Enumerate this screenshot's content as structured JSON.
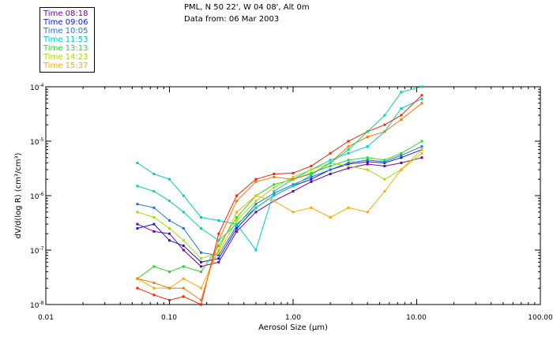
{
  "chart_data": {
    "type": "line",
    "title_lines": [
      "PML, N 50 22', W 04 08', Alt 0m",
      "Data from: 06 Mar 2003"
    ],
    "xlabel": "Aerosol Size (µm)",
    "ylabel": "dV/d(log R) (cm³/cm³)",
    "x_scale": "log",
    "y_scale": "log",
    "xlim": [
      0.01,
      100
    ],
    "ylim": [
      1e-08,
      0.0001
    ],
    "x_tick_labels": [
      "0.01",
      "0.10",
      "1.00",
      "10.00",
      "100.00"
    ],
    "y_tick_labels": [
      {
        "base": "10",
        "exp": "-4"
      },
      {
        "base": "10",
        "exp": "-5"
      },
      {
        "base": "10",
        "exp": "-6"
      },
      {
        "base": "10",
        "exp": "-7"
      },
      {
        "base": "10",
        "exp": "-8"
      }
    ],
    "x": [
      0.055,
      0.075,
      0.1,
      0.13,
      0.18,
      0.25,
      0.35,
      0.5,
      0.7,
      1.0,
      1.4,
      2.0,
      2.8,
      4.0,
      5.5,
      7.5,
      11.0
    ],
    "series": [
      {
        "name": "Time 08:18",
        "color": "#7700aa",
        "values": [
          3e-07,
          2.2e-07,
          2e-07,
          1e-07,
          5e-08,
          6e-08,
          2.2e-07,
          5e-07,
          8e-07,
          1.2e-06,
          1.8e-06,
          2.5e-06,
          3.2e-06,
          3.8e-06,
          3.5e-06,
          4e-06,
          5e-06
        ]
      },
      {
        "name": "Time 09:06",
        "color": "#1020cc",
        "values": [
          2.5e-07,
          3e-07,
          1.5e-07,
          1.2e-07,
          6e-08,
          7e-08,
          2.5e-07,
          6e-07,
          1e-06,
          1.5e-06,
          2e-06,
          3e-06,
          3.8e-06,
          4.2e-06,
          4e-06,
          5e-06,
          7e-06
        ]
      },
      {
        "name": "Time 10:05",
        "color": "#2070e0",
        "values": [
          7e-07,
          6e-07,
          3.5e-07,
          2.5e-07,
          9e-08,
          8e-08,
          2.8e-07,
          7e-07,
          1.1e-06,
          1.6e-06,
          2.2e-06,
          3e-06,
          4e-06,
          4.5e-06,
          4.2e-06,
          5.5e-06,
          8e-06
        ]
      },
      {
        "name": "Time 11:53",
        "color": "#00cccc",
        "values": [
          4e-06,
          2.5e-06,
          2e-06,
          1e-06,
          4e-07,
          3.5e-07,
          3e-07,
          1e-07,
          1.2e-06,
          2e-06,
          3e-06,
          4.5e-06,
          6e-06,
          8e-06,
          1.5e-05,
          4e-05,
          6e-05
        ]
      },
      {
        "name": "Time 13:13",
        "color": "#22dd22",
        "values": [
          3e-08,
          5e-08,
          4e-08,
          5e-08,
          4e-08,
          1.2e-07,
          4e-07,
          1e-06,
          1.6e-06,
          2e-06,
          2.6e-06,
          3.5e-06,
          4.5e-06,
          5e-06,
          4.5e-06,
          6e-06,
          1e-05
        ]
      },
      {
        "name": "Time 14:23",
        "color": "#aadd00",
        "values": [
          5e-07,
          4e-07,
          2.5e-07,
          1.5e-07,
          7e-08,
          9e-08,
          3.5e-07,
          8e-07,
          1.4e-06,
          2.2e-06,
          3e-06,
          4e-06,
          3.5e-06,
          3e-06,
          2e-06,
          3e-06,
          6e-06
        ]
      },
      {
        "name": "Time 15:37",
        "color": "#ffaa00",
        "values": [
          3e-08,
          2e-08,
          2e-08,
          3e-08,
          2e-08,
          1e-07,
          5e-07,
          1e-06,
          8e-07,
          5e-07,
          6e-07,
          4e-07,
          6e-07,
          5e-07,
          1.2e-06,
          3e-06,
          7e-06
        ]
      },
      {
        "name": "",
        "color": "#ff2200",
        "values": [
          2e-08,
          1.5e-08,
          1.2e-08,
          1.4e-08,
          1e-08,
          2e-07,
          1e-06,
          2e-06,
          2.5e-06,
          2.6e-06,
          3.5e-06,
          6e-06,
          1e-05,
          1.5e-05,
          2e-05,
          3e-05,
          7e-05
        ]
      },
      {
        "name": "",
        "color": "#ff7700",
        "values": [
          3e-08,
          2.5e-08,
          2e-08,
          2e-08,
          1.2e-08,
          1.5e-07,
          8e-07,
          1.8e-06,
          2.2e-06,
          2e-06,
          2.5e-06,
          4e-06,
          8e-06,
          1.2e-05,
          1.5e-05,
          2.5e-05,
          5e-05
        ]
      },
      {
        "name": "",
        "color": "#00dd88",
        "values": [
          1.5e-06,
          1.2e-06,
          8e-07,
          5e-07,
          2.5e-07,
          1.5e-07,
          3e-07,
          6e-07,
          1e-06,
          1.5e-06,
          2.4e-06,
          4e-06,
          7e-06,
          1.5e-05,
          3e-05,
          8e-05,
          0.0001
        ]
      }
    ]
  },
  "legend": {
    "items": [
      {
        "label": "Time 08:18",
        "color": "#7700aa"
      },
      {
        "label": "Time 09:06",
        "color": "#1020cc"
      },
      {
        "label": "Time 10:05",
        "color": "#2070e0"
      },
      {
        "label": "Time 11:53",
        "color": "#00cccc"
      },
      {
        "label": "Time 13:13",
        "color": "#22dd22"
      },
      {
        "label": "Time 14:23",
        "color": "#aadd00"
      },
      {
        "label": "Time 15:37",
        "color": "#ffaa00"
      }
    ]
  }
}
